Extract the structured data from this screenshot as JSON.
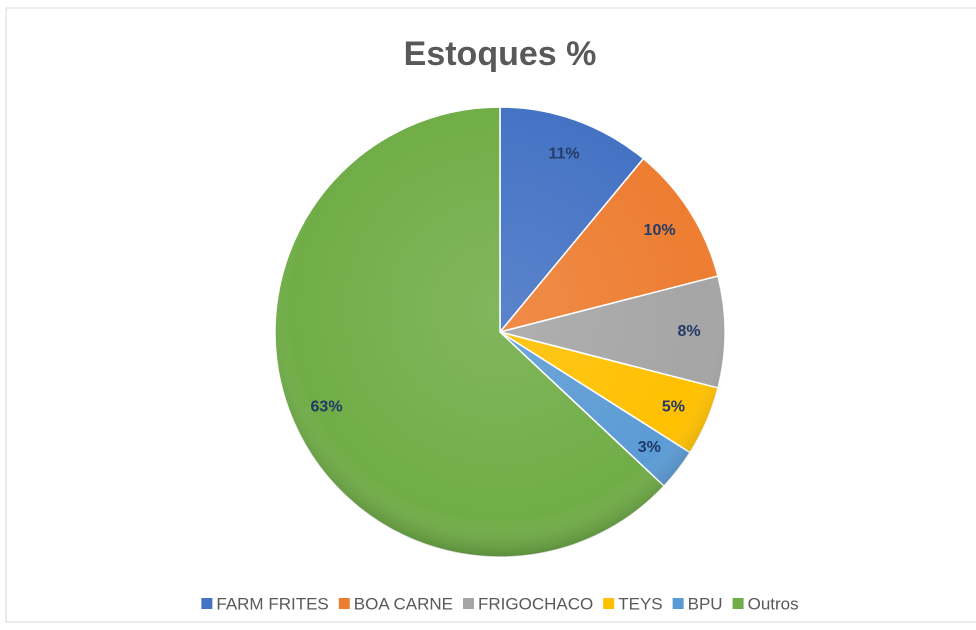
{
  "chart_data": {
    "type": "pie",
    "title": "Estoques %",
    "categories": [
      "FARM FRITES",
      "BOA CARNE",
      "FRIGOCHACO",
      "TEYS",
      "BPU",
      "Outros"
    ],
    "values": [
      11,
      10,
      8,
      5,
      3,
      63
    ],
    "value_labels": [
      "11%",
      "10%",
      "8%",
      "5%",
      "3%",
      "63%"
    ],
    "colors": [
      "#4472c4",
      "#ed7d31",
      "#a5a5a5",
      "#ffc000",
      "#5b9bd5",
      "#70ad47"
    ],
    "legend": "bottom"
  }
}
